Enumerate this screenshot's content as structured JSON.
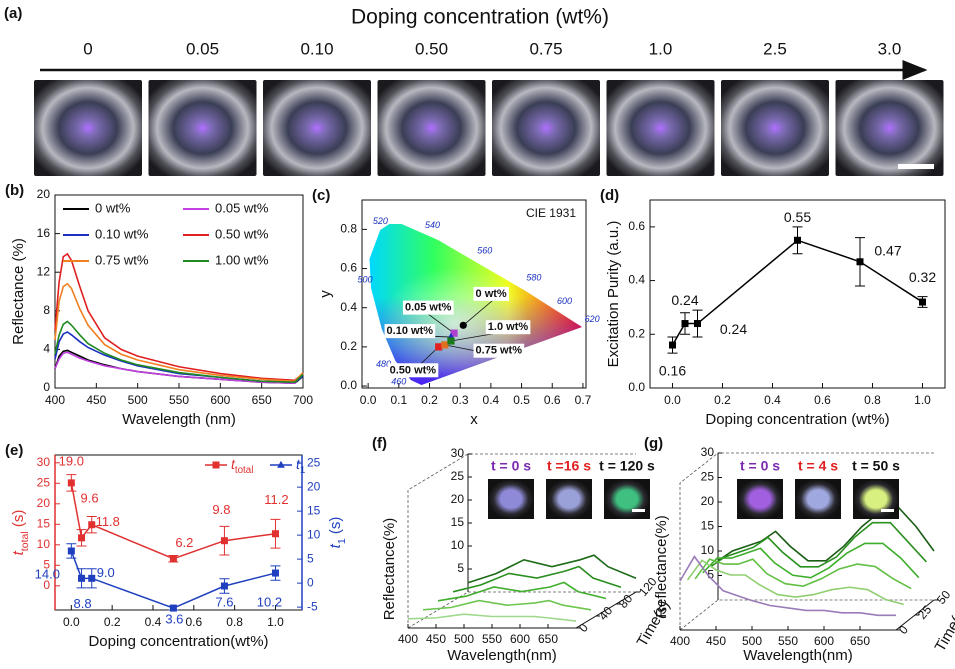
{
  "photo_strip": {
    "panel_label": "(a)",
    "title": "Doping concentration (wt%)",
    "concentrations": [
      "0",
      "0.05",
      "0.10",
      "0.50",
      "0.75",
      "1.0",
      "2.5",
      "3.0"
    ]
  },
  "chart_data": [
    {
      "type": "line",
      "panel_label": "(b)",
      "xlabel": "Wavelength (nm)",
      "ylabel": "Reflectance (%)",
      "x": [
        400,
        405,
        410,
        415,
        420,
        430,
        440,
        460,
        480,
        500,
        550,
        600,
        650,
        690,
        700
      ],
      "series": [
        {
          "name": "0 wt%",
          "color": "#000000",
          "values": [
            2,
            3.3,
            3.8,
            3.9,
            3.7,
            3.3,
            2.9,
            2.4,
            2,
            1.7,
            1.2,
            0.9,
            0.6,
            0.5,
            1.2
          ]
        },
        {
          "name": "0.05 wt%",
          "color": "#c040e0",
          "values": [
            2,
            3,
            3.6,
            3.7,
            3.5,
            3.1,
            2.8,
            2.3,
            2,
            1.7,
            1.2,
            0.9,
            0.6,
            0.5,
            1.5
          ]
        },
        {
          "name": "0.10 wt%",
          "color": "#1a2fc0",
          "values": [
            3,
            4.8,
            5.6,
            5.8,
            5.5,
            4.8,
            4.2,
            3.4,
            2.8,
            2.3,
            1.5,
            1.1,
            0.7,
            0.6,
            1.2
          ]
        },
        {
          "name": "0.50 wt%",
          "color": "#e02020",
          "values": [
            6,
            11,
            13.6,
            13.9,
            13.2,
            10.5,
            8,
            5.2,
            4,
            3.3,
            2.2,
            1.5,
            1,
            0.8,
            1.5
          ]
        },
        {
          "name": "0.75 wt%",
          "color": "#f08020",
          "values": [
            5,
            9,
            10.5,
            10.8,
            10.3,
            8.2,
            6.5,
            4.5,
            3.5,
            2.9,
            1.9,
            1.3,
            0.9,
            0.7,
            1.6
          ]
        },
        {
          "name": "1.00 wt%",
          "color": "#208a20",
          "values": [
            3.5,
            5.5,
            6.6,
            6.9,
            6.5,
            5.5,
            4.6,
            3.6,
            2.9,
            2.4,
            1.6,
            1.1,
            0.7,
            0.6,
            1.4
          ]
        }
      ],
      "xlim": [
        400,
        700
      ],
      "ylim": [
        0,
        20
      ],
      "xticks": [
        400,
        450,
        500,
        550,
        600,
        650,
        700
      ],
      "yticks": [
        0,
        4,
        8,
        12,
        16,
        20
      ],
      "legend": "upper right"
    },
    {
      "type": "scatter",
      "panel_label": "(c)",
      "annotation": "CIE 1931",
      "xlabel": "x",
      "ylabel": "y",
      "xlim": [
        -0.02,
        0.71
      ],
      "ylim": [
        -0.01,
        0.95
      ],
      "xticks": [
        {
          "value": 0,
          "label": "0.0"
        },
        0.1,
        0.2,
        0.3,
        0.4,
        0.5,
        0.6,
        0.7
      ],
      "yticks": [
        {
          "value": 0,
          "label": "0.0"
        },
        0.2,
        0.4,
        0.6,
        0.8
      ],
      "locus_wavelengths": [
        460,
        480,
        500,
        520,
        540,
        560,
        580,
        600,
        620
      ],
      "locus_x": [
        0.1,
        0.05,
        -0.01,
        0.04,
        0.21,
        0.38,
        0.54,
        0.64,
        0.73
      ],
      "locus_y": [
        0.02,
        0.11,
        0.54,
        0.84,
        0.82,
        0.69,
        0.55,
        0.43,
        0.34
      ],
      "series": [
        {
          "name": "0 wt%",
          "color": "#000000",
          "marker": "circle",
          "x": [
            0.31
          ],
          "y": [
            0.31
          ],
          "label_x": 0.35,
          "label_y": 0.47
        },
        {
          "name": "0.05 wt%",
          "color": "#b040d0",
          "marker": "square",
          "x": [
            0.28
          ],
          "y": [
            0.27
          ],
          "label_x": 0.12,
          "label_y": 0.4
        },
        {
          "name": "0.10 wt%",
          "color": "#1a2fc0",
          "marker": "triangle",
          "x": [
            0.27
          ],
          "y": [
            0.25
          ],
          "label_x": 0.06,
          "label_y": 0.28
        },
        {
          "name": "0.50 wt%",
          "color": "#e02020",
          "marker": "square",
          "x": [
            0.23
          ],
          "y": [
            0.2
          ],
          "label_x": 0.07,
          "label_y": 0.08
        },
        {
          "name": "0.75 wt%",
          "color": "#e07020",
          "marker": "square",
          "x": [
            0.25
          ],
          "y": [
            0.21
          ],
          "label_x": 0.35,
          "label_y": 0.18
        },
        {
          "name": "1.0 wt%",
          "color": "#1a7a1a",
          "marker": "square",
          "x": [
            0.27
          ],
          "y": [
            0.23
          ],
          "label_x": 0.39,
          "label_y": 0.3
        }
      ]
    },
    {
      "type": "line",
      "panel_label": "(d)",
      "xlabel": "Doping concentration (wt%)",
      "ylabel": "Excitation Purity (a.u.)",
      "x": [
        0,
        0.05,
        0.1,
        0.5,
        0.75,
        1.0
      ],
      "values": [
        0.16,
        0.24,
        0.24,
        0.55,
        0.47,
        0.32
      ],
      "errors": [
        0.03,
        0.04,
        0.05,
        0.05,
        0.09,
        0.02
      ],
      "color": "#000000",
      "data_labels": true,
      "xlim": [
        -0.09,
        1.09
      ],
      "ylim": [
        0,
        0.7
      ],
      "xticks": [
        {
          "value": 0,
          "label": "0.0"
        },
        0.2,
        0.4,
        0.6,
        0.8,
        {
          "value": 1,
          "label": "1.0"
        }
      ],
      "yticks": [
        {
          "value": 0,
          "label": "0.0"
        },
        0.2,
        0.4,
        0.6
      ]
    },
    {
      "type": "line",
      "panel_label": "(e)",
      "xlabel": "Doping concentration(wt%)",
      "ylabel": "ttotal (s)",
      "y2label": "t1 (s)",
      "x": [
        0,
        0.05,
        0.1,
        0.5,
        0.75,
        1.0
      ],
      "series": [
        {
          "name": "ttotal",
          "color": "#e03030",
          "marker": "square",
          "values": [
            25.1,
            11.7,
            14.9,
            6.6,
            11,
            12.7
          ],
          "errors": [
            2,
            2,
            2,
            0.8,
            3.5,
            3.5
          ],
          "annotations": [
            "19.0",
            "9.6",
            "11.8",
            "6.2",
            "9.8",
            "11.2"
          ]
        },
        {
          "name": "t1",
          "color": "#1f3fbf",
          "marker": "square",
          "axis": "y2",
          "values": [
            6.7,
            1,
            1,
            -5.2,
            -0.6,
            2.1
          ],
          "errors": [
            1.5,
            2,
            2,
            0.4,
            1.5,
            1.5
          ],
          "annotations": [
            "14.0",
            "8.8",
            "9.0",
            "3.6",
            "7.6",
            "10.2"
          ]
        }
      ],
      "xlim": [
        -0.08,
        1.13
      ],
      "ylim": [
        -5.9,
        31.9
      ],
      "y2lim": [
        -5.6,
        26.7
      ],
      "xticks": [
        {
          "value": 0,
          "label": "0.0"
        },
        0.2,
        0.4,
        0.6,
        0.8,
        {
          "value": 1,
          "label": "1.0"
        }
      ],
      "yticks": [
        0,
        5,
        10,
        15,
        20,
        25,
        30
      ],
      "y2ticks": [
        -5,
        0,
        5,
        10,
        15,
        20,
        25
      ]
    },
    {
      "type": "waterfall",
      "panel_label": "(f)",
      "xlabel": "Wavelength(nm)",
      "ylabel": "Reflectance(%)",
      "zlabel": "Time(s)",
      "x": [
        400,
        450,
        500,
        550,
        600,
        625,
        650,
        700
      ],
      "times": [
        0,
        30,
        60,
        90,
        120
      ],
      "series": [
        {
          "color": "#9fd88a",
          "values": [
            2,
            2.2,
            3,
            2.5,
            2.5,
            2.5,
            2.2,
            1.5
          ]
        },
        {
          "color": "#6cc64f",
          "values": [
            2,
            2.5,
            4,
            3,
            3.5,
            4,
            3,
            2
          ]
        },
        {
          "color": "#3fae2c",
          "values": [
            2,
            3,
            5,
            4,
            5,
            6,
            4,
            2.5
          ]
        },
        {
          "color": "#2a8f1f",
          "values": [
            2,
            3.5,
            6,
            5,
            6.5,
            7.5,
            5,
            3
          ]
        },
        {
          "color": "#1c6b16",
          "values": [
            2,
            4,
            7,
            5.5,
            7,
            8,
            5.5,
            3
          ]
        }
      ],
      "xlim": [
        400,
        700
      ],
      "ylim": [
        0,
        30
      ],
      "zlim": [
        0,
        120
      ],
      "xticks": [
        400,
        450,
        500,
        550,
        600,
        650
      ],
      "yticks": [
        5,
        10,
        15,
        20,
        25,
        30
      ],
      "zticks": [
        0,
        40,
        80,
        120
      ],
      "insets": [
        {
          "label": "t = 0 s",
          "color": "#7a2ab0",
          "glow": "#8f8ad8"
        },
        {
          "label": "t =16 s",
          "color": "#e02020",
          "glow": "#9aa0d8"
        },
        {
          "label": "t = 120 s",
          "color": "#111111",
          "glow": "#3fc080"
        }
      ]
    },
    {
      "type": "waterfall",
      "panel_label": "(g)",
      "xlabel": "Wavelength(nm)",
      "ylabel": "Reflectance(%)",
      "zlabel": "Time(s)",
      "x": [
        400,
        420,
        440,
        460,
        480,
        500,
        525,
        550,
        575,
        600,
        625,
        650,
        675,
        700
      ],
      "times": [
        0,
        10,
        20,
        30,
        40,
        50
      ],
      "series": [
        {
          "color": "#9b7bb8",
          "values": [
            10,
            15,
            11,
            8,
            7,
            6,
            5,
            4.5,
            4,
            4,
            3.5,
            3.5,
            3,
            3
          ]
        },
        {
          "color": "#8fcf70",
          "values": [
            9,
            13,
            11,
            10,
            10,
            8,
            6,
            5.5,
            6,
            7,
            7.5,
            7,
            5,
            4
          ]
        },
        {
          "color": "#62bf44",
          "values": [
            8,
            12,
            11,
            11,
            12,
            9,
            7,
            6.5,
            8,
            10,
            11,
            10.5,
            8,
            6
          ]
        },
        {
          "color": "#3fae2c",
          "values": [
            8,
            11,
            11,
            12,
            13,
            10,
            7.5,
            7,
            9,
            12,
            14,
            14,
            11,
            7
          ]
        },
        {
          "color": "#2a9020",
          "values": [
            8,
            10,
            11,
            12,
            14,
            11,
            8,
            8,
            10,
            14,
            17,
            17,
            13,
            9
          ]
        },
        {
          "color": "#1a5e15",
          "values": [
            8,
            10,
            11,
            12,
            14,
            11,
            8,
            8,
            11,
            15,
            18,
            19,
            15,
            10
          ]
        }
      ],
      "xlim": [
        400,
        700
      ],
      "ylim": [
        0,
        30
      ],
      "zlim": [
        0,
        50
      ],
      "xticks": [
        400,
        450,
        500,
        550,
        600,
        650
      ],
      "yticks": [
        5,
        10,
        15,
        20,
        25,
        30
      ],
      "zticks": [
        0,
        25,
        50
      ],
      "insets": [
        {
          "label": "t = 0 s",
          "color": "#7a2ab0",
          "glow": "#a060e0"
        },
        {
          "label": "t = 4 s",
          "color": "#e02020",
          "glow": "#a0a8e0"
        },
        {
          "label": "t = 50 s",
          "color": "#111111",
          "glow": "#d8f080"
        }
      ]
    }
  ]
}
